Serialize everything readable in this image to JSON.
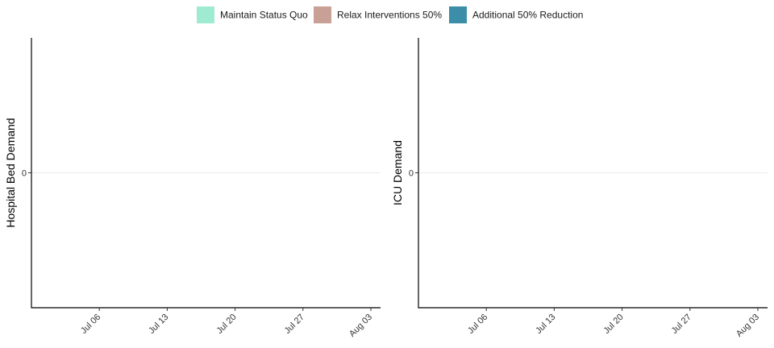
{
  "chart_data": {
    "type": "area",
    "legend": {
      "position": "top",
      "entries": [
        {
          "label": "Maintain Status Quo",
          "color": "#9FEBD1"
        },
        {
          "label": "Relax Interventions 50%",
          "color": "#C9A095"
        },
        {
          "label": "Additional 50% Reduction",
          "color": "#3C8EA8"
        }
      ]
    },
    "panels": [
      {
        "ylabel": "Hospital Bed Demand",
        "xlim": [
          "2020-06-29",
          "2020-08-04"
        ],
        "x_ticks": [
          {
            "date": "2020-07-06",
            "label": "Jul 06"
          },
          {
            "date": "2020-07-13",
            "label": "Jul 13"
          },
          {
            "date": "2020-07-20",
            "label": "Jul 20"
          },
          {
            "date": "2020-07-27",
            "label": "Jul 27"
          },
          {
            "date": "2020-08-03",
            "label": "Aug 03"
          }
        ],
        "ylim": [
          -1,
          1
        ],
        "y_ticks": [
          0
        ],
        "grid": "horizontal-major",
        "series": []
      },
      {
        "ylabel": "ICU Demand",
        "xlim": [
          "2020-06-29",
          "2020-08-04"
        ],
        "x_ticks": [
          {
            "date": "2020-07-06",
            "label": "Jul 06"
          },
          {
            "date": "2020-07-13",
            "label": "Jul 13"
          },
          {
            "date": "2020-07-20",
            "label": "Jul 20"
          },
          {
            "date": "2020-07-27",
            "label": "Jul 27"
          },
          {
            "date": "2020-08-03",
            "label": "Aug 03"
          }
        ],
        "ylim": [
          -1,
          1
        ],
        "y_ticks": [
          0
        ],
        "grid": "horizontal-major",
        "series": []
      }
    ]
  }
}
